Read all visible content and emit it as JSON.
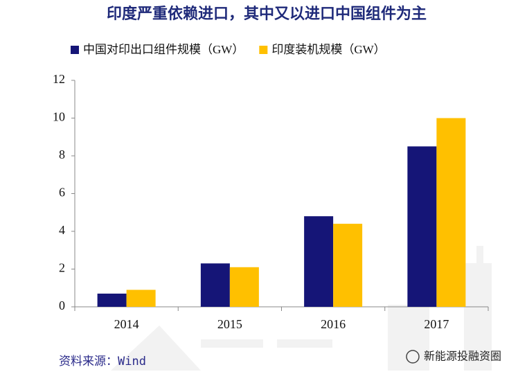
{
  "chart_data": {
    "type": "bar",
    "title": "印度严重依赖进口，其中又以进口中国组件为主",
    "categories": [
      "2014",
      "2015",
      "2016",
      "2017"
    ],
    "series": [
      {
        "name": "中国对印出口组件规模（GW）",
        "color": "#151577",
        "values": [
          0.7,
          2.3,
          4.8,
          8.5
        ]
      },
      {
        "name": "印度装机规模（GW）",
        "color": "#ffc000",
        "values": [
          0.9,
          2.1,
          4.4,
          10
        ]
      }
    ],
    "ylim": [
      0,
      12
    ],
    "yticks": [
      0,
      2,
      4,
      6,
      8,
      10,
      12
    ],
    "grid": false,
    "legend": "top",
    "source": "资料来源：Wind",
    "watermark": "新能源投融资圈"
  }
}
